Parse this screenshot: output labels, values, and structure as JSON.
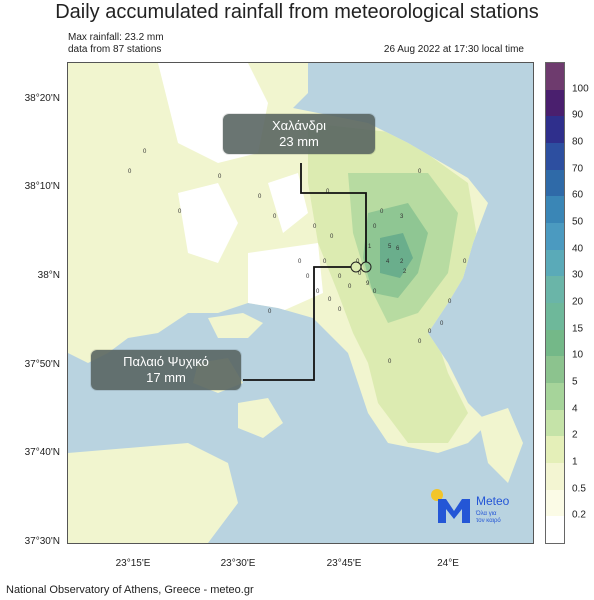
{
  "title": "Daily accumulated rainfall from meteorological stations",
  "max_rainfall": "Max rainfall: 23.2 mm",
  "stations": "data from 87 stations",
  "timestamp": "26 Aug 2022 at 17:30 local time",
  "footer": "National Observatory of Athens, Greece - meteo.gr",
  "lat_labels": [
    "38°20'N",
    "38°10'N",
    "38°N",
    "37°50'N",
    "37°40'N",
    "37°30'N"
  ],
  "lon_labels": [
    "23°15'E",
    "23°30'E",
    "23°45'E",
    "24°E"
  ],
  "callouts": [
    {
      "name": "Χαλάνδρι",
      "value": "23 mm"
    },
    {
      "name": "Παλαιό Ψυχικό",
      "value": "17 mm"
    }
  ],
  "colorbar": {
    "labels": [
      "100",
      "90",
      "80",
      "70",
      "60",
      "50",
      "40",
      "30",
      "20",
      "15",
      "10",
      "5",
      "4",
      "2",
      "1",
      "0.5",
      "0.2"
    ],
    "colors": [
      "#6e3b6e",
      "#4a1f6e",
      "#2f2f8c",
      "#2d4fa0",
      "#2f6aa8",
      "#3a86b6",
      "#4b9ac0",
      "#5aaab8",
      "#6ab5a8",
      "#6eb89a",
      "#74b888",
      "#8cc38e",
      "#a6d49a",
      "#c5e3a8",
      "#e4efb8",
      "#f3f5d2",
      "#fbfbe6",
      "#ffffff"
    ]
  },
  "station_values": [
    "0",
    "0",
    "0",
    "0",
    "0",
    "0",
    "0",
    "0",
    "0",
    "1",
    "2",
    "3",
    "4",
    "5",
    "6",
    "9",
    "0",
    "0",
    "0",
    "0",
    "0",
    "0",
    "0",
    "0",
    "2",
    "0",
    "0",
    "0",
    "0",
    "0",
    "0",
    "0",
    "0",
    "0",
    "0",
    "0",
    "0",
    "0"
  ],
  "logo": {
    "brand": "Meteo",
    "tagline_1": "Όλα για",
    "tagline_2": "τον καιρό",
    "color": "#2456d6",
    "sun_color": "#f2c52b"
  }
}
